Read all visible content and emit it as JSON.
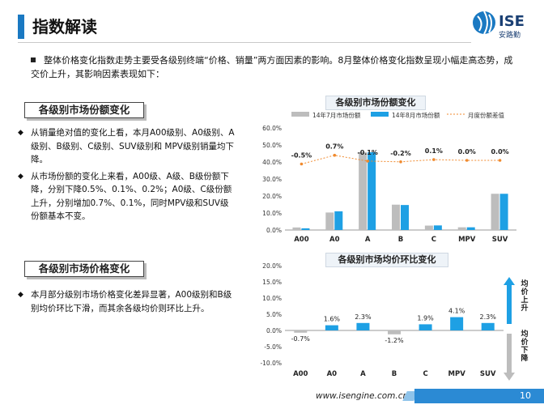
{
  "header": {
    "title": "指数解读",
    "brand": "ISE",
    "brand_cn": "安路勤",
    "accent": "#1a79c2"
  },
  "intro": {
    "text": "整体价格变化指数走势主要受各级别终端“价格、销量”两方面因素的影响。8月整体价格变化指数呈现小幅走高态势，成交价上升，其影响因素表现如下："
  },
  "share_section": {
    "label": "各级别市场份额变化",
    "bullets": [
      "从销量绝对值的变化上看，本月A00级别、A0级别、A级别、B级别、C级别、SUV级别和 MPV级别销量均下降。",
      "从市场份额的变化上来看，A00级、A级、B级份额下降，分别下降0.5%、0.1%、0.2%；A0级、C级份额上升，分别增加0.7%、0.1%，同时MPV级和SUV级份额基本不变。"
    ]
  },
  "price_section": {
    "label": "各级别市场价格变化",
    "bullets": [
      "本月部分级别市场价格变化差异显著，A00级别和B级别均价环比下滑，而其余各级均价则环比上升。"
    ]
  },
  "chart_data": [
    {
      "type": "bar",
      "title": "各级别市场份额变化",
      "categories": [
        "A00",
        "A0",
        "A",
        "B",
        "C",
        "MPV",
        "SUV"
      ],
      "ylim": [
        0,
        60
      ],
      "yticks": [
        "0.0%",
        "10.0%",
        "20.0%",
        "30.0%",
        "40.0%",
        "50.0%",
        "60.0%"
      ],
      "legend_position": "top",
      "series": [
        {
          "name": "14年7月市场份额",
          "color": "#bdbdbd",
          "values": [
            1.5,
            10.3,
            45.8,
            14.9,
            2.6,
            1.6,
            21.3
          ]
        },
        {
          "name": "14年8月市场份额",
          "color": "#1ea0e4",
          "values": [
            1.0,
            11.0,
            45.7,
            14.7,
            2.7,
            1.6,
            21.3
          ]
        }
      ],
      "line_series": {
        "name": "月度份额差值",
        "color": "#f08a2e",
        "labels": [
          "-0.5%",
          "0.7%",
          "-0.1%",
          "-0.2%",
          "0.1%",
          "0.0%",
          "0.0%"
        ],
        "values": [
          -0.5,
          0.7,
          -0.1,
          -0.2,
          0.1,
          0.0,
          0.0
        ]
      }
    },
    {
      "type": "bar",
      "title": "各级别市场均价环比变化",
      "categories": [
        "A00",
        "A0",
        "A",
        "B",
        "C",
        "MPV",
        "SUV"
      ],
      "ylim": [
        -10,
        20
      ],
      "yticks": [
        "-10.0%",
        "-5.0%",
        "0.0%",
        "5.0%",
        "10.0%",
        "15.0%",
        "20.0%"
      ],
      "series": [
        {
          "name": "均价环比",
          "color": "#1ea0e4",
          "negative_color": "#bdbdbd",
          "values": [
            -0.7,
            1.6,
            2.3,
            -1.2,
            1.9,
            4.1,
            2.3
          ],
          "labels": [
            "-0.7%",
            "1.6%",
            "2.3%",
            "-1.2%",
            "1.9%",
            "4.1%",
            "2.3%"
          ]
        }
      ],
      "arrows": {
        "up_text": "均价上升",
        "down_text": "均价下降",
        "up_color": "#1ea0e4",
        "down_color": "#bdbdbd"
      }
    }
  ],
  "footer": {
    "url": "www.isengine.com.cn",
    "page": "10"
  }
}
